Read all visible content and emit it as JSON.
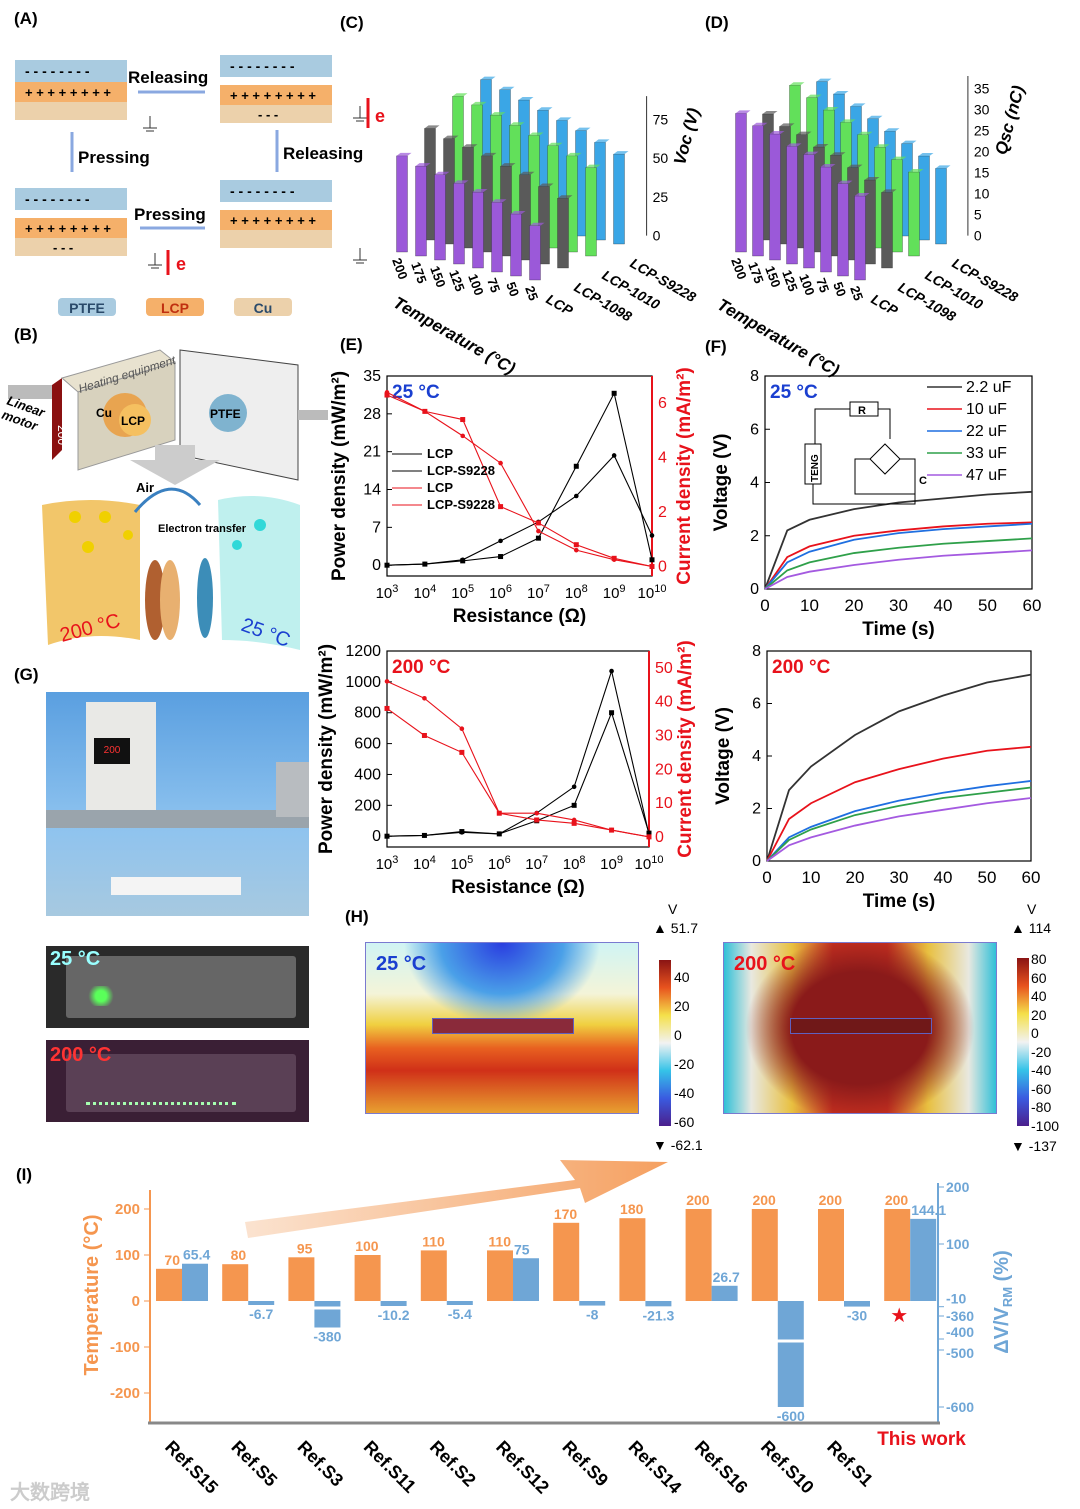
{
  "panel_labels": {
    "A": "(A)",
    "B": "(B)",
    "C": "(C)",
    "D": "(D)",
    "E": "(E)",
    "F": "(F)",
    "G": "(G)",
    "H": "(H)",
    "I": "(I)"
  },
  "panel_a": {
    "releasing1": "Releasing",
    "releasing2": "Releasing",
    "pressing1": "Pressing",
    "pressing2": "Pressing",
    "electron": "e",
    "minus_row": "- - - - - - - -",
    "plus_row": "+ + + + + + + +",
    "few_minus": "- - -",
    "legend": [
      "PTFE",
      "LCP",
      "Cu"
    ]
  },
  "panel_b": {
    "heating": "Heating equipment",
    "linear_motor": "Linear motor",
    "cu": "Cu",
    "lcp": "LCP",
    "ptfe": "PTFE",
    "display": "200",
    "air": "Air",
    "electron_transfer": "Electron transfer",
    "hot": "200 °C",
    "cold": "25 °C"
  },
  "panel_g": {
    "label_25": "25 °C",
    "label_200": "200 °C",
    "display": "200"
  },
  "colors": {
    "orange": "#f5964f",
    "blue": "#6fa6d6",
    "red": "#e8121b",
    "purple": "#9b59d9",
    "gray": "#5a5a5a",
    "green": "#62e05a",
    "cyan": "#3aa6e6"
  },
  "chart_data": [
    {
      "id": "C",
      "type": "bar3d",
      "zlabel": "Voc (V)",
      "xlabel": "Temperature (°C)",
      "temps": [
        "200",
        "175",
        "150",
        "125",
        "100",
        "75",
        "50",
        "25"
      ],
      "series_names": [
        "LCP",
        "LCP-1098",
        "LCP-1010",
        "LCP-S9228"
      ],
      "zticks": [
        "0",
        "25",
        "50",
        "75"
      ],
      "zmax": 90,
      "values": [
        [
          62,
          58,
          55,
          52,
          49,
          45,
          40,
          35
        ],
        [
          72,
          68,
          65,
          62,
          58,
          55,
          50,
          45
        ],
        [
          85,
          82,
          78,
          74,
          70,
          66,
          62,
          57
        ],
        [
          88,
          84,
          80,
          76,
          72,
          68,
          63,
          58
        ]
      ]
    },
    {
      "id": "D",
      "type": "bar3d",
      "zlabel": "Qsc (nC)",
      "xlabel": "Temperature (°C)",
      "temps": [
        "200",
        "175",
        "150",
        "125",
        "100",
        "75",
        "50",
        "25"
      ],
      "series_names": [
        "LCP",
        "LCP-1098",
        "LCP-1010",
        "LCP-S9228"
      ],
      "zticks": [
        "0",
        "5",
        "10",
        "15",
        "20",
        "25",
        "30",
        "35"
      ],
      "zmax": 38,
      "values": [
        [
          33,
          31,
          30,
          28,
          27,
          25,
          22,
          20
        ],
        [
          30,
          28,
          27,
          25,
          24,
          22,
          20,
          18
        ],
        [
          34,
          32,
          30,
          28,
          26,
          24,
          22,
          20
        ],
        [
          32,
          30,
          28,
          26,
          24,
          22,
          20,
          18
        ]
      ]
    },
    {
      "id": "E1",
      "type": "line",
      "title": "25 °C",
      "xlabel": "Resistance (Ω)",
      "ylabel": "Power density (mW/m²)",
      "y2label": "Current density (mA/m²)",
      "x_exp": [
        3,
        4,
        5,
        6,
        7,
        8,
        9,
        10
      ],
      "ylim": [
        -2,
        35
      ],
      "yticks": [
        0,
        7,
        14,
        21,
        28,
        35
      ],
      "y2lim": [
        -0.35,
        7
      ],
      "y2ticks": [
        0,
        2,
        4,
        6
      ],
      "series": [
        {
          "name": "LCP",
          "axis": "left",
          "marker": "circle",
          "values": [
            0,
            0.2,
            1,
            4.5,
            8,
            12.8,
            20.3,
            5.5
          ]
        },
        {
          "name": "LCP-S9228",
          "axis": "left",
          "marker": "square",
          "values": [
            0,
            0.2,
            0.8,
            1.6,
            5,
            18.3,
            31.8,
            1
          ]
        },
        {
          "name": "LCP",
          "axis": "right",
          "marker": "circle",
          "values": [
            6.4,
            5.7,
            4.8,
            3.8,
            1.3,
            0.6,
            0.25,
            0
          ]
        },
        {
          "name": "LCP-S9228",
          "axis": "right",
          "marker": "square",
          "values": [
            6.3,
            5.7,
            5.4,
            2.2,
            1.6,
            0.8,
            0.3,
            0
          ]
        }
      ]
    },
    {
      "id": "E2",
      "type": "line",
      "title": "200 °C",
      "xlabel": "Resistance (Ω)",
      "ylabel": "Power density (mW/m²)",
      "y2label": "Current density (mA/m²)",
      "x_exp": [
        3,
        4,
        5,
        6,
        7,
        8,
        9,
        10
      ],
      "ylim": [
        -70,
        1200
      ],
      "yticks": [
        0,
        200,
        400,
        600,
        800,
        1000,
        1200
      ],
      "y2lim": [
        -3,
        55
      ],
      "y2ticks": [
        0,
        10,
        20,
        30,
        40,
        50
      ],
      "series": [
        {
          "name": "LCP",
          "axis": "left",
          "marker": "circle",
          "values": [
            0,
            5,
            25,
            15,
            150,
            320,
            1070,
            10
          ]
        },
        {
          "name": "LCP-S9228",
          "axis": "left",
          "marker": "square",
          "values": [
            0,
            5,
            30,
            15,
            100,
            200,
            800,
            20
          ]
        },
        {
          "name": "LCP",
          "axis": "right",
          "marker": "circle",
          "values": [
            46,
            41,
            32,
            7,
            7,
            5,
            2,
            0
          ]
        },
        {
          "name": "LCP-S9228",
          "axis": "right",
          "marker": "square",
          "values": [
            38,
            30,
            25,
            7,
            5,
            4,
            2,
            0
          ]
        }
      ]
    },
    {
      "id": "F1",
      "type": "line",
      "title": "25 °C",
      "xlabel": "Time (s)",
      "ylabel": "Voltage (V)",
      "x": [
        0,
        5,
        10,
        20,
        30,
        40,
        50,
        60
      ],
      "xticks": [
        0,
        10,
        20,
        30,
        40,
        50,
        60
      ],
      "ylim": [
        0,
        8
      ],
      "yticks": [
        0,
        2,
        4,
        6,
        8
      ],
      "circuit": {
        "r": "R",
        "teng": "TENG",
        "c": "C"
      },
      "series": [
        {
          "name": "2.2 uF",
          "color": "#333333",
          "values": [
            0,
            2.2,
            2.6,
            3.0,
            3.25,
            3.4,
            3.55,
            3.65
          ]
        },
        {
          "name": "10 uF",
          "color": "#e8121b",
          "values": [
            0,
            1.2,
            1.6,
            2.0,
            2.2,
            2.35,
            2.45,
            2.5
          ]
        },
        {
          "name": "22 uF",
          "color": "#1f6fe0",
          "values": [
            0,
            1.0,
            1.4,
            1.85,
            2.1,
            2.25,
            2.35,
            2.45
          ]
        },
        {
          "name": "33 uF",
          "color": "#2fa04a",
          "values": [
            0,
            0.7,
            1.0,
            1.35,
            1.55,
            1.7,
            1.8,
            1.9
          ]
        },
        {
          "name": "47 uF",
          "color": "#a45ae0",
          "values": [
            0,
            0.45,
            0.65,
            0.9,
            1.1,
            1.25,
            1.35,
            1.45
          ]
        }
      ]
    },
    {
      "id": "F2",
      "type": "line",
      "title": "200 °C",
      "xlabel": "Time (s)",
      "ylabel": "Voltage (V)",
      "x": [
        0,
        5,
        10,
        20,
        30,
        40,
        50,
        60
      ],
      "xticks": [
        0,
        10,
        20,
        30,
        40,
        50,
        60
      ],
      "ylim": [
        0,
        8
      ],
      "yticks": [
        0,
        2,
        4,
        6,
        8
      ],
      "series": [
        {
          "name": "2.2 uF",
          "color": "#333333",
          "values": [
            0,
            2.7,
            3.6,
            4.8,
            5.7,
            6.3,
            6.8,
            7.1
          ]
        },
        {
          "name": "10 uF",
          "color": "#e8121b",
          "values": [
            0,
            1.6,
            2.2,
            3.0,
            3.5,
            3.9,
            4.2,
            4.35
          ]
        },
        {
          "name": "22 uF",
          "color": "#1f6fe0",
          "values": [
            0,
            0.9,
            1.3,
            1.9,
            2.3,
            2.6,
            2.85,
            3.05
          ]
        },
        {
          "name": "33 uF",
          "color": "#2fa04a",
          "values": [
            0,
            0.8,
            1.2,
            1.75,
            2.1,
            2.4,
            2.6,
            2.8
          ]
        },
        {
          "name": "47 uF",
          "color": "#a45ae0",
          "values": [
            0,
            0.6,
            0.9,
            1.35,
            1.7,
            1.95,
            2.2,
            2.4
          ]
        }
      ]
    },
    {
      "id": "H",
      "type": "heatmap",
      "unit": "V",
      "maps": [
        {
          "title": "25 °C",
          "max": "51.7",
          "min": "-62.1",
          "ticks": [
            "40",
            "20",
            "0",
            "-20",
            "-40",
            "-60"
          ]
        },
        {
          "title": "200 °C",
          "max": "114",
          "min": "-137",
          "ticks": [
            "80",
            "60",
            "40",
            "20",
            "0",
            "-20",
            "-40",
            "-60",
            "-80",
            "-100"
          ]
        }
      ]
    },
    {
      "id": "I",
      "type": "bar",
      "ylabel": "Temperature (°C)",
      "y2label": "ΔV/V",
      "y2label_sub": "RM",
      "y2label_unit": " (%)",
      "yticks": [
        200,
        100,
        0,
        -100,
        -200
      ],
      "y2ticks": [
        "200",
        "100",
        "-10",
        "-360",
        "-400",
        "-500",
        "-600"
      ],
      "categories": [
        "Ref.S15",
        "Ref.S5",
        "Ref.S3",
        "Ref.S11",
        "Ref.S2",
        "Ref.S12",
        "Ref.S9",
        "Ref.S14",
        "Ref.S16",
        "Ref.S10",
        "Ref.S1",
        "This work"
      ],
      "series": [
        {
          "name": "Temperature",
          "values": [
            70,
            80,
            95,
            100,
            110,
            110,
            170,
            180,
            200,
            200,
            200,
            200
          ]
        },
        {
          "name": "ΔV/VRM",
          "values": [
            65.4,
            -6.7,
            -380,
            -10.2,
            -5.4,
            75,
            -8,
            -21.3,
            26.7,
            -600,
            -30,
            144.1
          ]
        }
      ],
      "value_labels_temp": [
        "70",
        "80",
        "95",
        "100",
        "110",
        "110",
        "170",
        "180",
        "200",
        "200",
        "200",
        "200"
      ],
      "value_labels_dv": [
        "65.4",
        "-6.7",
        "-380",
        "-10.2",
        "-5.4",
        "75",
        "-8",
        "-21.3",
        "26.7",
        "-600",
        "-30",
        "144.1"
      ]
    }
  ],
  "watermark": "大数跨境"
}
